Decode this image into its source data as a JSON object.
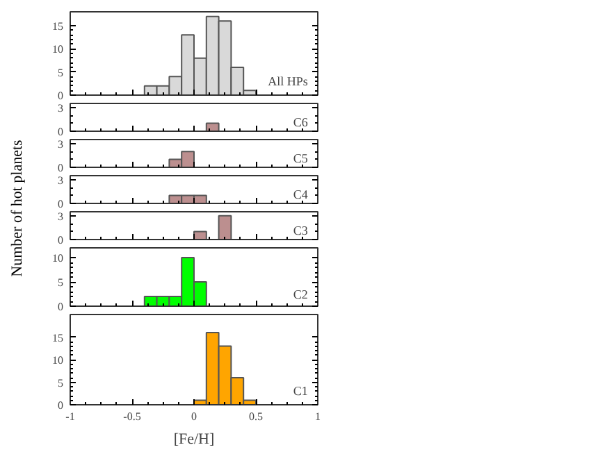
{
  "chart_data": [
    {
      "type": "histogram",
      "bins": [
        -0.4,
        -0.3,
        -0.2,
        -0.1,
        0,
        0.1,
        0.2,
        0.3,
        0.4,
        0.5
      ],
      "series": [
        {
          "color": "#d9d9d9",
          "values": [
            2,
            2,
            4,
            13,
            8,
            17,
            16,
            6,
            1
          ]
        }
      ],
      "xlim": [
        -1,
        1
      ],
      "xticks": [
        -1,
        -0.5,
        0,
        0.5,
        1
      ],
      "ylim": [
        0,
        18
      ],
      "yticks": [
        0,
        5,
        10,
        15
      ],
      "tick_labels": "y",
      "annotations": [
        "All HPs"
      ]
    },
    {
      "type": "histogram",
      "bins": [
        0.1,
        0.2
      ],
      "series": [
        {
          "color": "#bc8f8f",
          "values": [
            1
          ]
        }
      ],
      "xlim": [
        -1,
        1
      ],
      "xticks": [
        -1,
        -0.5,
        0,
        0.5,
        1
      ],
      "ylim": [
        0,
        3.5
      ],
      "yticks": [
        0,
        3
      ],
      "tick_labels": "y",
      "annotations": [
        "C6"
      ]
    },
    {
      "type": "histogram",
      "bins": [
        -0.2,
        -0.1,
        0
      ],
      "series": [
        {
          "color": "#bc8f8f",
          "values": [
            1,
            2
          ]
        }
      ],
      "xlim": [
        -1,
        1
      ],
      "xticks": [
        -1,
        -0.5,
        0,
        0.5,
        1
      ],
      "ylim": [
        0,
        3.5
      ],
      "yticks": [
        0,
        3
      ],
      "tick_labels": "y",
      "annotations": [
        "C5"
      ]
    },
    {
      "type": "histogram",
      "bins": [
        -0.2,
        -0.1,
        0,
        0.1
      ],
      "series": [
        {
          "color": "#bc8f8f",
          "values": [
            1,
            1,
            1
          ]
        }
      ],
      "xlim": [
        -1,
        1
      ],
      "xticks": [
        -1,
        -0.5,
        0,
        0.5,
        1
      ],
      "ylim": [
        0,
        3.5
      ],
      "yticks": [
        0,
        3
      ],
      "tick_labels": "y",
      "ylabel": "Number of hot planets",
      "annotations": [
        "C4"
      ]
    },
    {
      "type": "histogram",
      "bins": [
        0,
        0.1,
        0.2,
        0.3
      ],
      "series": [
        {
          "color": "#bc8f8f",
          "values": [
            1,
            0,
            3
          ]
        }
      ],
      "xlim": [
        -1,
        1
      ],
      "xticks": [
        -1,
        -0.5,
        0,
        0.5,
        1
      ],
      "ylim": [
        0,
        3.5
      ],
      "yticks": [
        0,
        3
      ],
      "tick_labels": "y",
      "annotations": [
        "C3"
      ]
    },
    {
      "type": "histogram",
      "bins": [
        -0.4,
        -0.3,
        -0.2,
        -0.1,
        0,
        0.1
      ],
      "series": [
        {
          "color": "#00ff00",
          "values": [
            2,
            2,
            2,
            10,
            5
          ]
        }
      ],
      "xlim": [
        -1,
        1
      ],
      "xticks": [
        -1,
        -0.5,
        0,
        0.5,
        1
      ],
      "ylim": [
        0,
        12
      ],
      "yticks": [
        0,
        5,
        10
      ],
      "tick_labels": "y",
      "annotations": [
        "C2"
      ]
    },
    {
      "type": "histogram",
      "bins": [
        0,
        0.1,
        0.2,
        0.3,
        0.4,
        0.5
      ],
      "series": [
        {
          "color": "#ffa500",
          "values": [
            1,
            16,
            13,
            6,
            1
          ]
        }
      ],
      "xlim": [
        -1,
        1
      ],
      "xticks": [
        -1,
        -0.5,
        0,
        0.5,
        1
      ],
      "ylim": [
        0,
        20
      ],
      "yticks": [
        0,
        5,
        10,
        15
      ],
      "xlabel": "[Fe/H]",
      "annotations": [
        "C1"
      ]
    }
  ]
}
